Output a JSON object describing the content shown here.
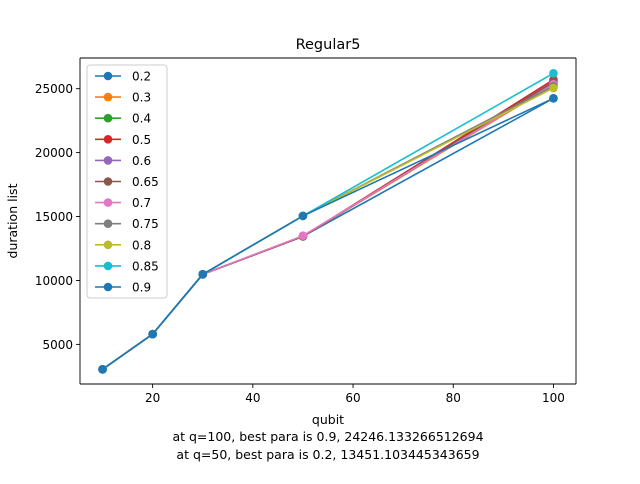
{
  "figure": {
    "caption_lines": [
      "at q=100, best para is 0.9, 24246.133266512694",
      "at q=50, best para is 0.2, 13451.103445343659"
    ]
  },
  "chart_data": {
    "type": "line",
    "title": "Regular5",
    "xlabel": "qubit",
    "ylabel": "duration list",
    "xlim": [
      5.5,
      104.5
    ],
    "ylim": [
      1900,
      27400
    ],
    "x": [
      10,
      20,
      30,
      50,
      100
    ],
    "xticks": [
      20,
      40,
      60,
      80,
      100
    ],
    "yticks": [
      5000,
      10000,
      15000,
      20000,
      25000
    ],
    "grid": false,
    "legend_position": "top-left",
    "series": [
      {
        "name": "0.2",
        "color": "#1f77b4",
        "values": [
          3050,
          5800,
          10480,
          13451,
          24246
        ]
      },
      {
        "name": "0.3",
        "color": "#ff7f0e",
        "values": [
          3050,
          5800,
          10480,
          13451,
          25300
        ]
      },
      {
        "name": "0.4",
        "color": "#2ca02c",
        "values": [
          3050,
          5800,
          10480,
          13451,
          25400
        ]
      },
      {
        "name": "0.5",
        "color": "#d62728",
        "values": [
          3050,
          5800,
          10480,
          13451,
          25700
        ]
      },
      {
        "name": "0.6",
        "color": "#9467bd",
        "values": [
          3050,
          5800,
          10480,
          13451,
          25450
        ]
      },
      {
        "name": "0.65",
        "color": "#8c564b",
        "values": [
          3050,
          5800,
          10480,
          13451,
          25550
        ]
      },
      {
        "name": "0.7",
        "color": "#e377c2",
        "values": [
          3050,
          5800,
          10480,
          13500,
          25350
        ]
      },
      {
        "name": "0.75",
        "color": "#7f7f7f",
        "values": [
          3050,
          5800,
          10480,
          15050,
          25200
        ]
      },
      {
        "name": "0.8",
        "color": "#bcbd22",
        "values": [
          3050,
          5800,
          10480,
          15050,
          25050
        ]
      },
      {
        "name": "0.85",
        "color": "#17becf",
        "values": [
          3050,
          5800,
          10480,
          15050,
          26200
        ]
      },
      {
        "name": "0.9",
        "color": "#1f77b4",
        "values": [
          3050,
          5800,
          10480,
          15050,
          24246
        ]
      }
    ]
  }
}
